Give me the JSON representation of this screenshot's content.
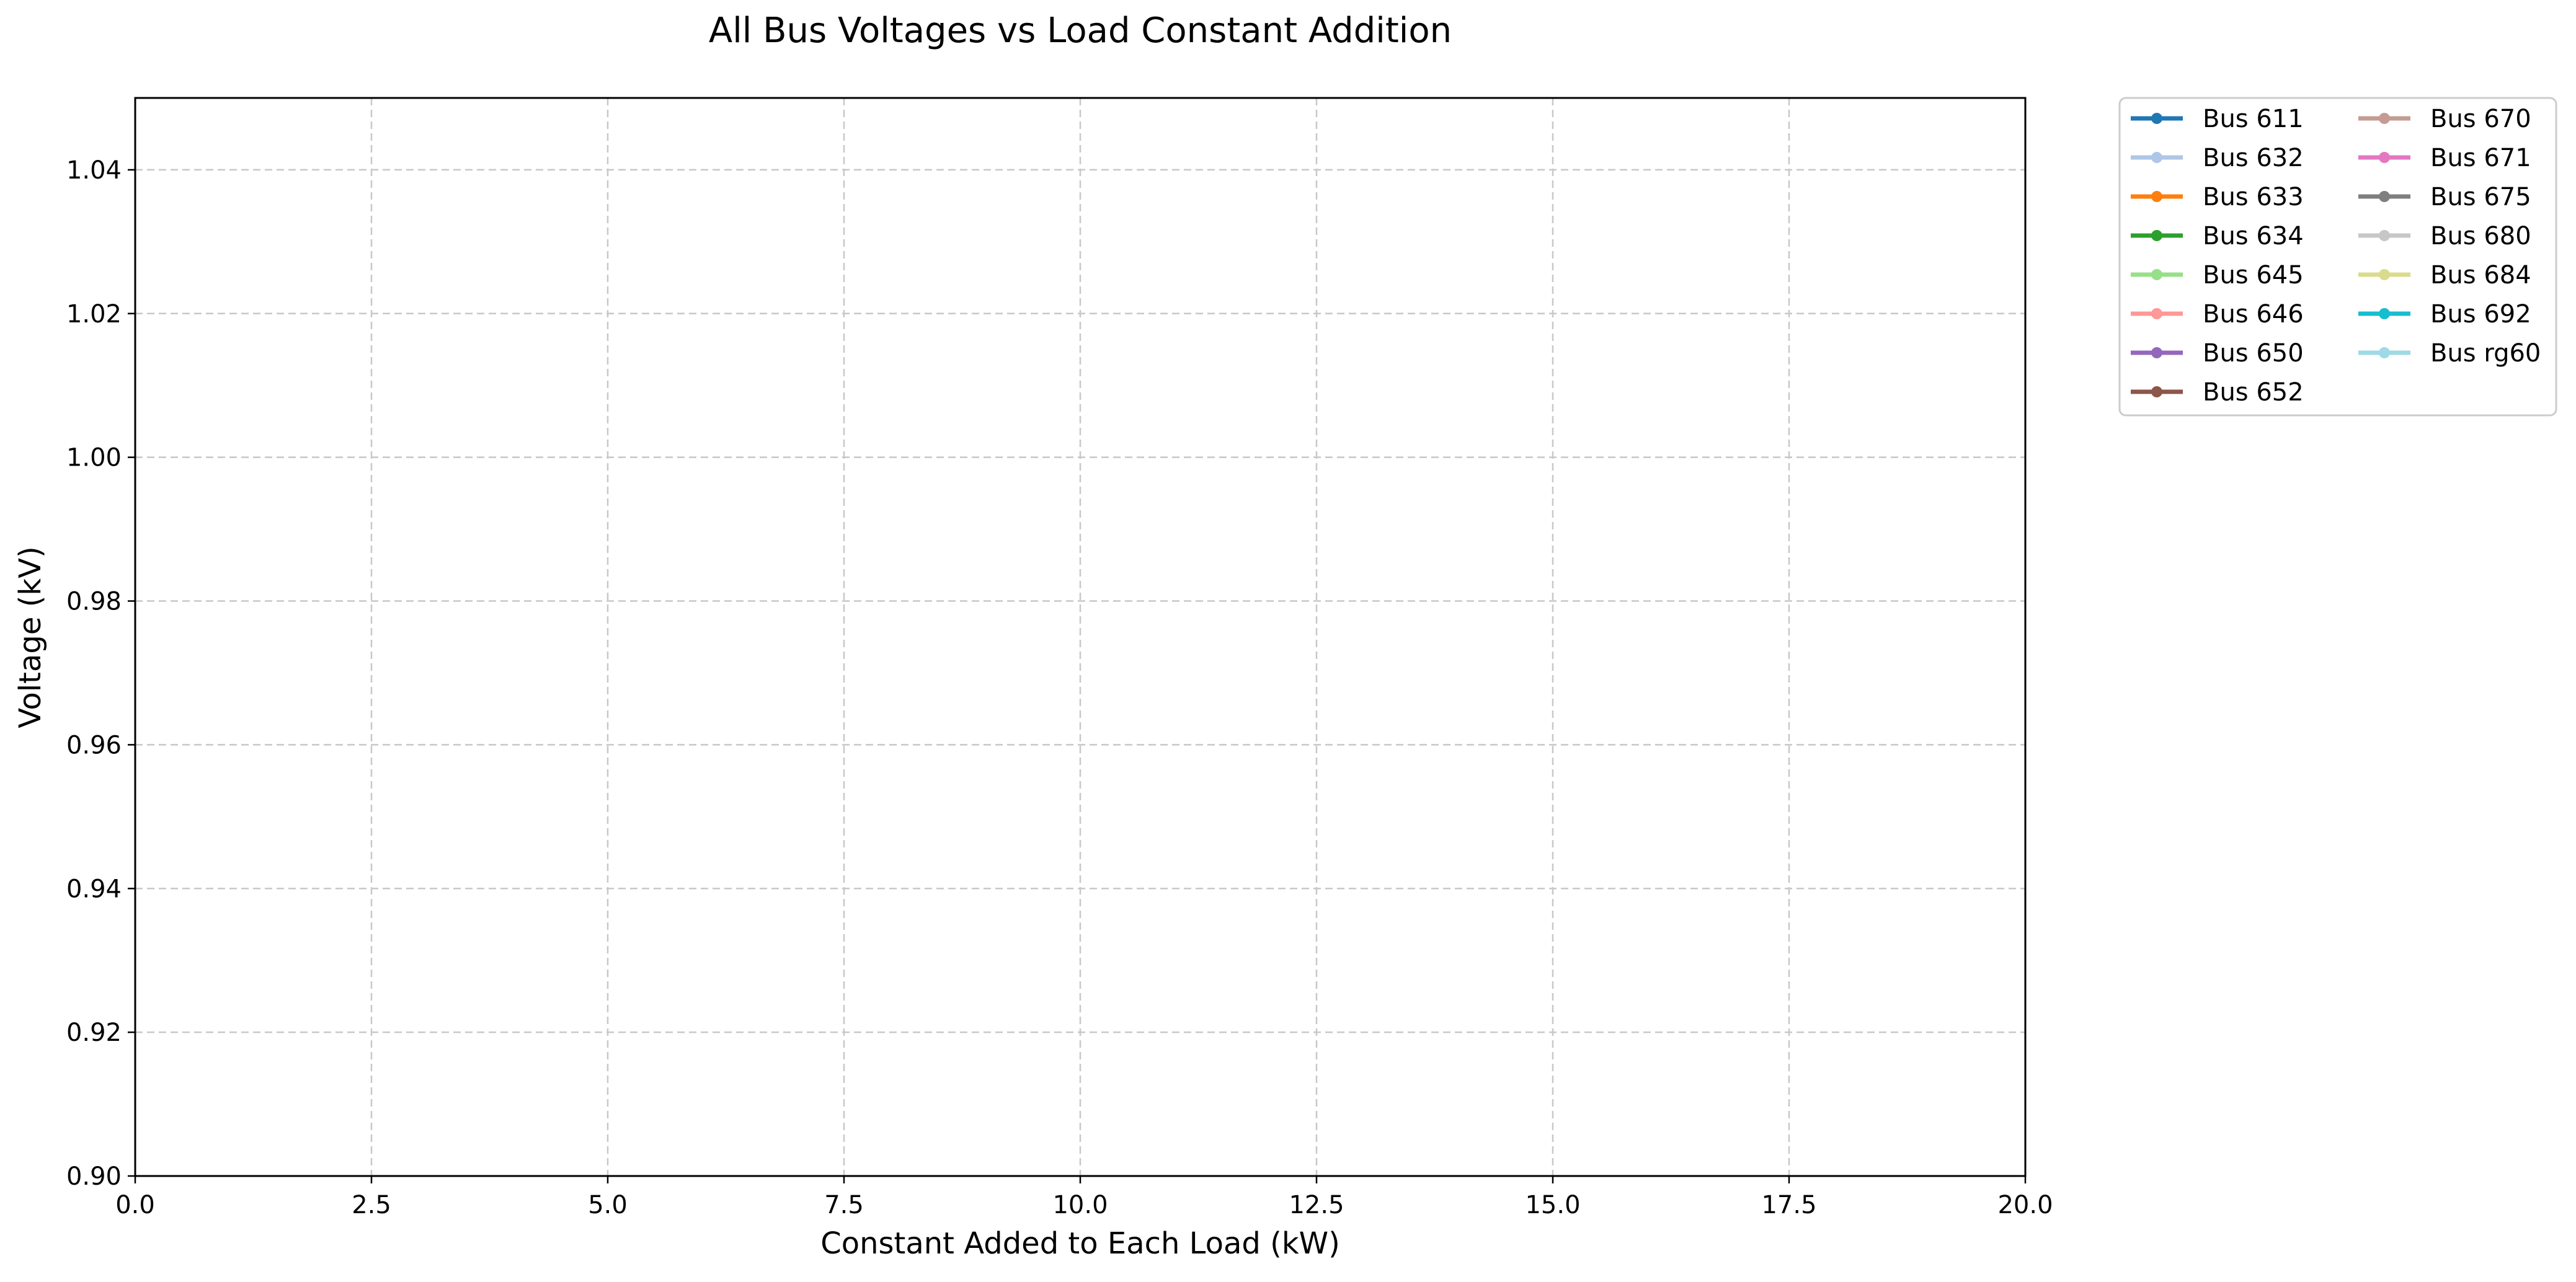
{
  "chart_data": {
    "type": "line",
    "title": "All Bus Voltages vs Load Constant Addition",
    "xlabel": "Constant Added to Each Load (kW)",
    "ylabel": "Voltage (kV)",
    "xlim": [
      0.0,
      20.0
    ],
    "ylim": [
      0.9,
      1.05
    ],
    "x_ticks": [
      "0.0",
      "2.5",
      "5.0",
      "7.5",
      "10.0",
      "12.5",
      "15.0",
      "17.5",
      "20.0"
    ],
    "y_ticks": [
      "0.90",
      "0.92",
      "0.94",
      "0.96",
      "0.98",
      "1.00",
      "1.02",
      "1.04"
    ],
    "grid": true,
    "grid_style": "dashed",
    "legend_position": "outside-top-right",
    "legend_columns": 2,
    "series": [
      {
        "name": "Bus 611",
        "color": "#1f77b4",
        "x": [],
        "y": []
      },
      {
        "name": "Bus 632",
        "color": "#aec7e8",
        "x": [],
        "y": []
      },
      {
        "name": "Bus 633",
        "color": "#ff7f0e",
        "x": [],
        "y": []
      },
      {
        "name": "Bus 634",
        "color": "#2ca02c",
        "x": [],
        "y": []
      },
      {
        "name": "Bus 645",
        "color": "#98df8a",
        "x": [],
        "y": []
      },
      {
        "name": "Bus 646",
        "color": "#ff9896",
        "x": [],
        "y": []
      },
      {
        "name": "Bus 650",
        "color": "#9467bd",
        "x": [],
        "y": []
      },
      {
        "name": "Bus 652",
        "color": "#8c564b",
        "x": [],
        "y": []
      },
      {
        "name": "Bus 670",
        "color": "#c49c94",
        "x": [],
        "y": []
      },
      {
        "name": "Bus 671",
        "color": "#e377c2",
        "x": [],
        "y": []
      },
      {
        "name": "Bus 675",
        "color": "#7f7f7f",
        "x": [],
        "y": []
      },
      {
        "name": "Bus 680",
        "color": "#c7c7c7",
        "x": [],
        "y": []
      },
      {
        "name": "Bus 684",
        "color": "#dbdb8d",
        "x": [],
        "y": []
      },
      {
        "name": "Bus 692",
        "color": "#17becf",
        "x": [],
        "y": []
      },
      {
        "name": "Bus rg60",
        "color": "#9edae5",
        "x": [],
        "y": []
      }
    ]
  }
}
